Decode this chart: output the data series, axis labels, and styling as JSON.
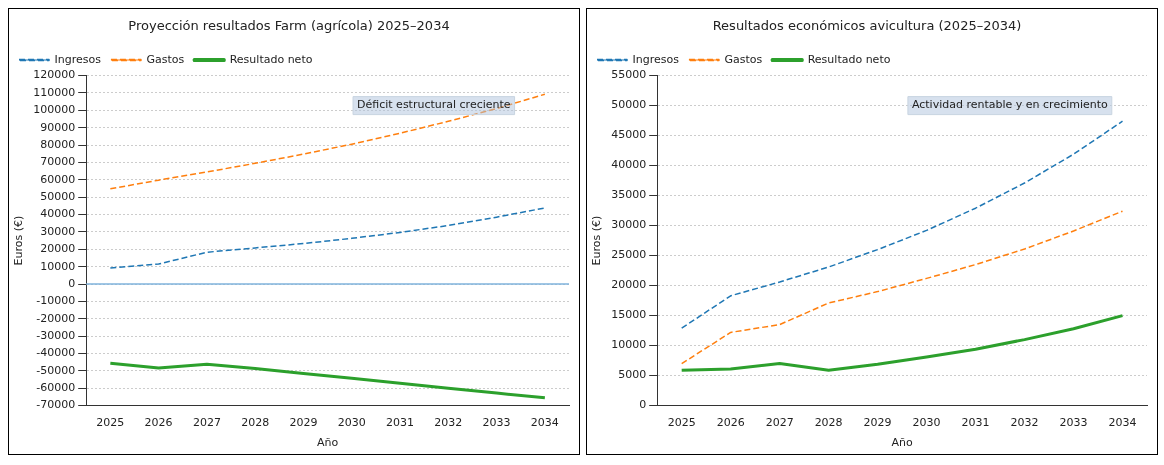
{
  "chart_data": [
    {
      "type": "line",
      "title": "Proyección resultados Farm (agrícola) 2025–2034",
      "xlabel": "Año",
      "ylabel": "Euros (€)",
      "categories": [
        "2025",
        "2026",
        "2027",
        "2028",
        "2029",
        "2030",
        "2031",
        "2032",
        "2033",
        "2034"
      ],
      "series": [
        {
          "name": "Ingresos",
          "color": "#1f77b4",
          "line_style": "dashed",
          "values": [
            9200,
            11500,
            18300,
            20800,
            23300,
            26300,
            29700,
            33700,
            38500,
            43800
          ]
        },
        {
          "name": "Gastos",
          "color": "#ff7f0e",
          "line_style": "dashed",
          "values": [
            54800,
            59800,
            64500,
            69500,
            74800,
            80500,
            86800,
            93700,
            101000,
            109300
          ]
        },
        {
          "name": "Resultado neto",
          "color": "#2ca02c",
          "line_style": "solid",
          "values": [
            -45600,
            -48300,
            -46200,
            -48700,
            -51500,
            -54200,
            -57100,
            -60000,
            -62800,
            -65500
          ]
        }
      ],
      "ylim": [
        -70000,
        120000
      ],
      "yticks": [
        -70000,
        -60000,
        -50000,
        -40000,
        -30000,
        -20000,
        -10000,
        0,
        10000,
        20000,
        30000,
        40000,
        50000,
        60000,
        70000,
        80000,
        90000,
        100000,
        110000,
        120000
      ],
      "ref_lines": [
        {
          "axis": "y",
          "value": 0,
          "color": "#7fb3dc"
        }
      ],
      "annotations": [
        "Déficit estructural creciente"
      ],
      "grid": "y",
      "legend": "top left",
      "marker": "none"
    },
    {
      "type": "line",
      "title": "Resultados económicos avicultura (2025–2034)",
      "xlabel": "Año",
      "ylabel": "Euros (€)",
      "categories": [
        "2025",
        "2026",
        "2027",
        "2028",
        "2029",
        "2030",
        "2031",
        "2032",
        "2033",
        "2034"
      ],
      "series": [
        {
          "name": "Ingresos",
          "color": "#1f77b4",
          "line_style": "dashed",
          "values": [
            12900,
            18300,
            20600,
            23100,
            26000,
            29200,
            32900,
            37100,
            41900,
            47400
          ]
        },
        {
          "name": "Gastos",
          "color": "#ff7f0e",
          "line_style": "dashed",
          "values": [
            7000,
            12200,
            13500,
            17100,
            19000,
            21200,
            23500,
            26100,
            29100,
            32400
          ]
        },
        {
          "name": "Resultado neto",
          "color": "#2ca02c",
          "line_style": "solid",
          "values": [
            5900,
            6100,
            7000,
            5900,
            6900,
            8100,
            9400,
            11000,
            12800,
            15000
          ]
        }
      ],
      "ylim": [
        0,
        55000
      ],
      "yticks": [
        0,
        5000,
        10000,
        15000,
        20000,
        25000,
        30000,
        35000,
        40000,
        45000,
        50000,
        55000
      ],
      "annotations": [
        "Actividad rentable y en crecimiento"
      ],
      "grid": "y",
      "legend": "top left",
      "marker": "none"
    }
  ]
}
